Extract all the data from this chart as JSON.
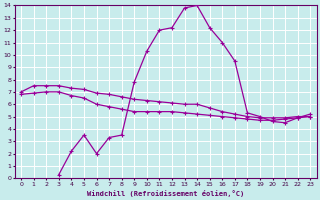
{
  "xlabel": "Windchill (Refroidissement éolien,°C)",
  "background_color": "#c8ecec",
  "grid_color": "#ffffff",
  "line_color": "#990099",
  "xlim": [
    -0.5,
    23.5
  ],
  "ylim": [
    0,
    14
  ],
  "xticks": [
    0,
    1,
    2,
    3,
    4,
    5,
    6,
    7,
    8,
    9,
    10,
    11,
    12,
    13,
    14,
    15,
    16,
    17,
    18,
    19,
    20,
    21,
    22,
    23
  ],
  "yticks": [
    0,
    1,
    2,
    3,
    4,
    5,
    6,
    7,
    8,
    9,
    10,
    11,
    12,
    13,
    14
  ],
  "line1_x": [
    0,
    1,
    2,
    3,
    4,
    5,
    6,
    7,
    8,
    9,
    10,
    11,
    12,
    13,
    14,
    15,
    16,
    17,
    18,
    19,
    20,
    21,
    22,
    23
  ],
  "line1_y": [
    7.0,
    7.5,
    7.5,
    7.5,
    7.3,
    7.2,
    6.9,
    6.8,
    6.6,
    6.4,
    6.3,
    6.2,
    6.1,
    6.0,
    6.0,
    5.7,
    5.4,
    5.2,
    5.0,
    4.9,
    4.9,
    4.9,
    5.0,
    5.0
  ],
  "line2_x": [
    3,
    4,
    5,
    6,
    7,
    8,
    9,
    10,
    11,
    12,
    13,
    14,
    15,
    16,
    17,
    18,
    19,
    20,
    21,
    22,
    23
  ],
  "line2_y": [
    0.3,
    2.2,
    3.5,
    2.0,
    3.3,
    3.5,
    7.8,
    10.3,
    12.0,
    12.2,
    13.8,
    14.0,
    12.2,
    11.0,
    9.5,
    5.3,
    5.0,
    4.6,
    4.5,
    4.9,
    5.2
  ],
  "line3_x": [
    0,
    1,
    2,
    3,
    4,
    5,
    6,
    7,
    8,
    9,
    10,
    11,
    12,
    13,
    14,
    15,
    16,
    17,
    18,
    19,
    20,
    21,
    22,
    23
  ],
  "line3_y": [
    6.8,
    6.9,
    7.0,
    7.0,
    6.7,
    6.5,
    6.0,
    5.8,
    5.6,
    5.4,
    5.4,
    5.4,
    5.4,
    5.3,
    5.2,
    5.1,
    5.0,
    4.9,
    4.8,
    4.7,
    4.7,
    4.8,
    4.9,
    5.0
  ]
}
